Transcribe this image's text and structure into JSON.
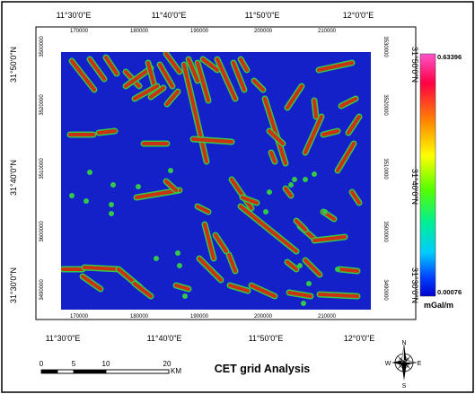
{
  "map": {
    "title": "CET grid Analysis",
    "graticule": {
      "lon_labels": [
        "11°30'0\"E",
        "11°40'0\"E",
        "11°50'0\"E",
        "12°0'0\"E"
      ],
      "lat_labels": [
        "31°50'0\"N",
        "31°40'0\"N",
        "31°30'0\"N"
      ]
    },
    "grid": {
      "x_labels": [
        "170000",
        "180000",
        "190000",
        "200000",
        "210000"
      ],
      "y_labels": [
        "3500000",
        "3520000",
        "3510000",
        "3600000",
        "3490000"
      ],
      "y_labels_right": [
        "3530000",
        "3520000",
        "3510000",
        "3500000",
        "3490000"
      ]
    },
    "legend": {
      "max_label": "0.63396",
      "min_label": "0.00076",
      "unit": "mGal/m",
      "colors": [
        "#ff55cc",
        "#ff0044",
        "#ff8800",
        "#ffff00",
        "#55ff00",
        "#00ee99",
        "#00ccff",
        "#0044ff",
        "#0000cc"
      ]
    },
    "scalebar": {
      "labels": [
        "0",
        "5",
        "10",
        "20"
      ],
      "unit": "KM"
    },
    "north_arrow": {
      "n": "N",
      "s": "S",
      "e": "E",
      "w": "W"
    },
    "colors": {
      "background": "#1420c8",
      "lineament_green": "#33c84a",
      "lineament_red": "#d42a10"
    }
  }
}
